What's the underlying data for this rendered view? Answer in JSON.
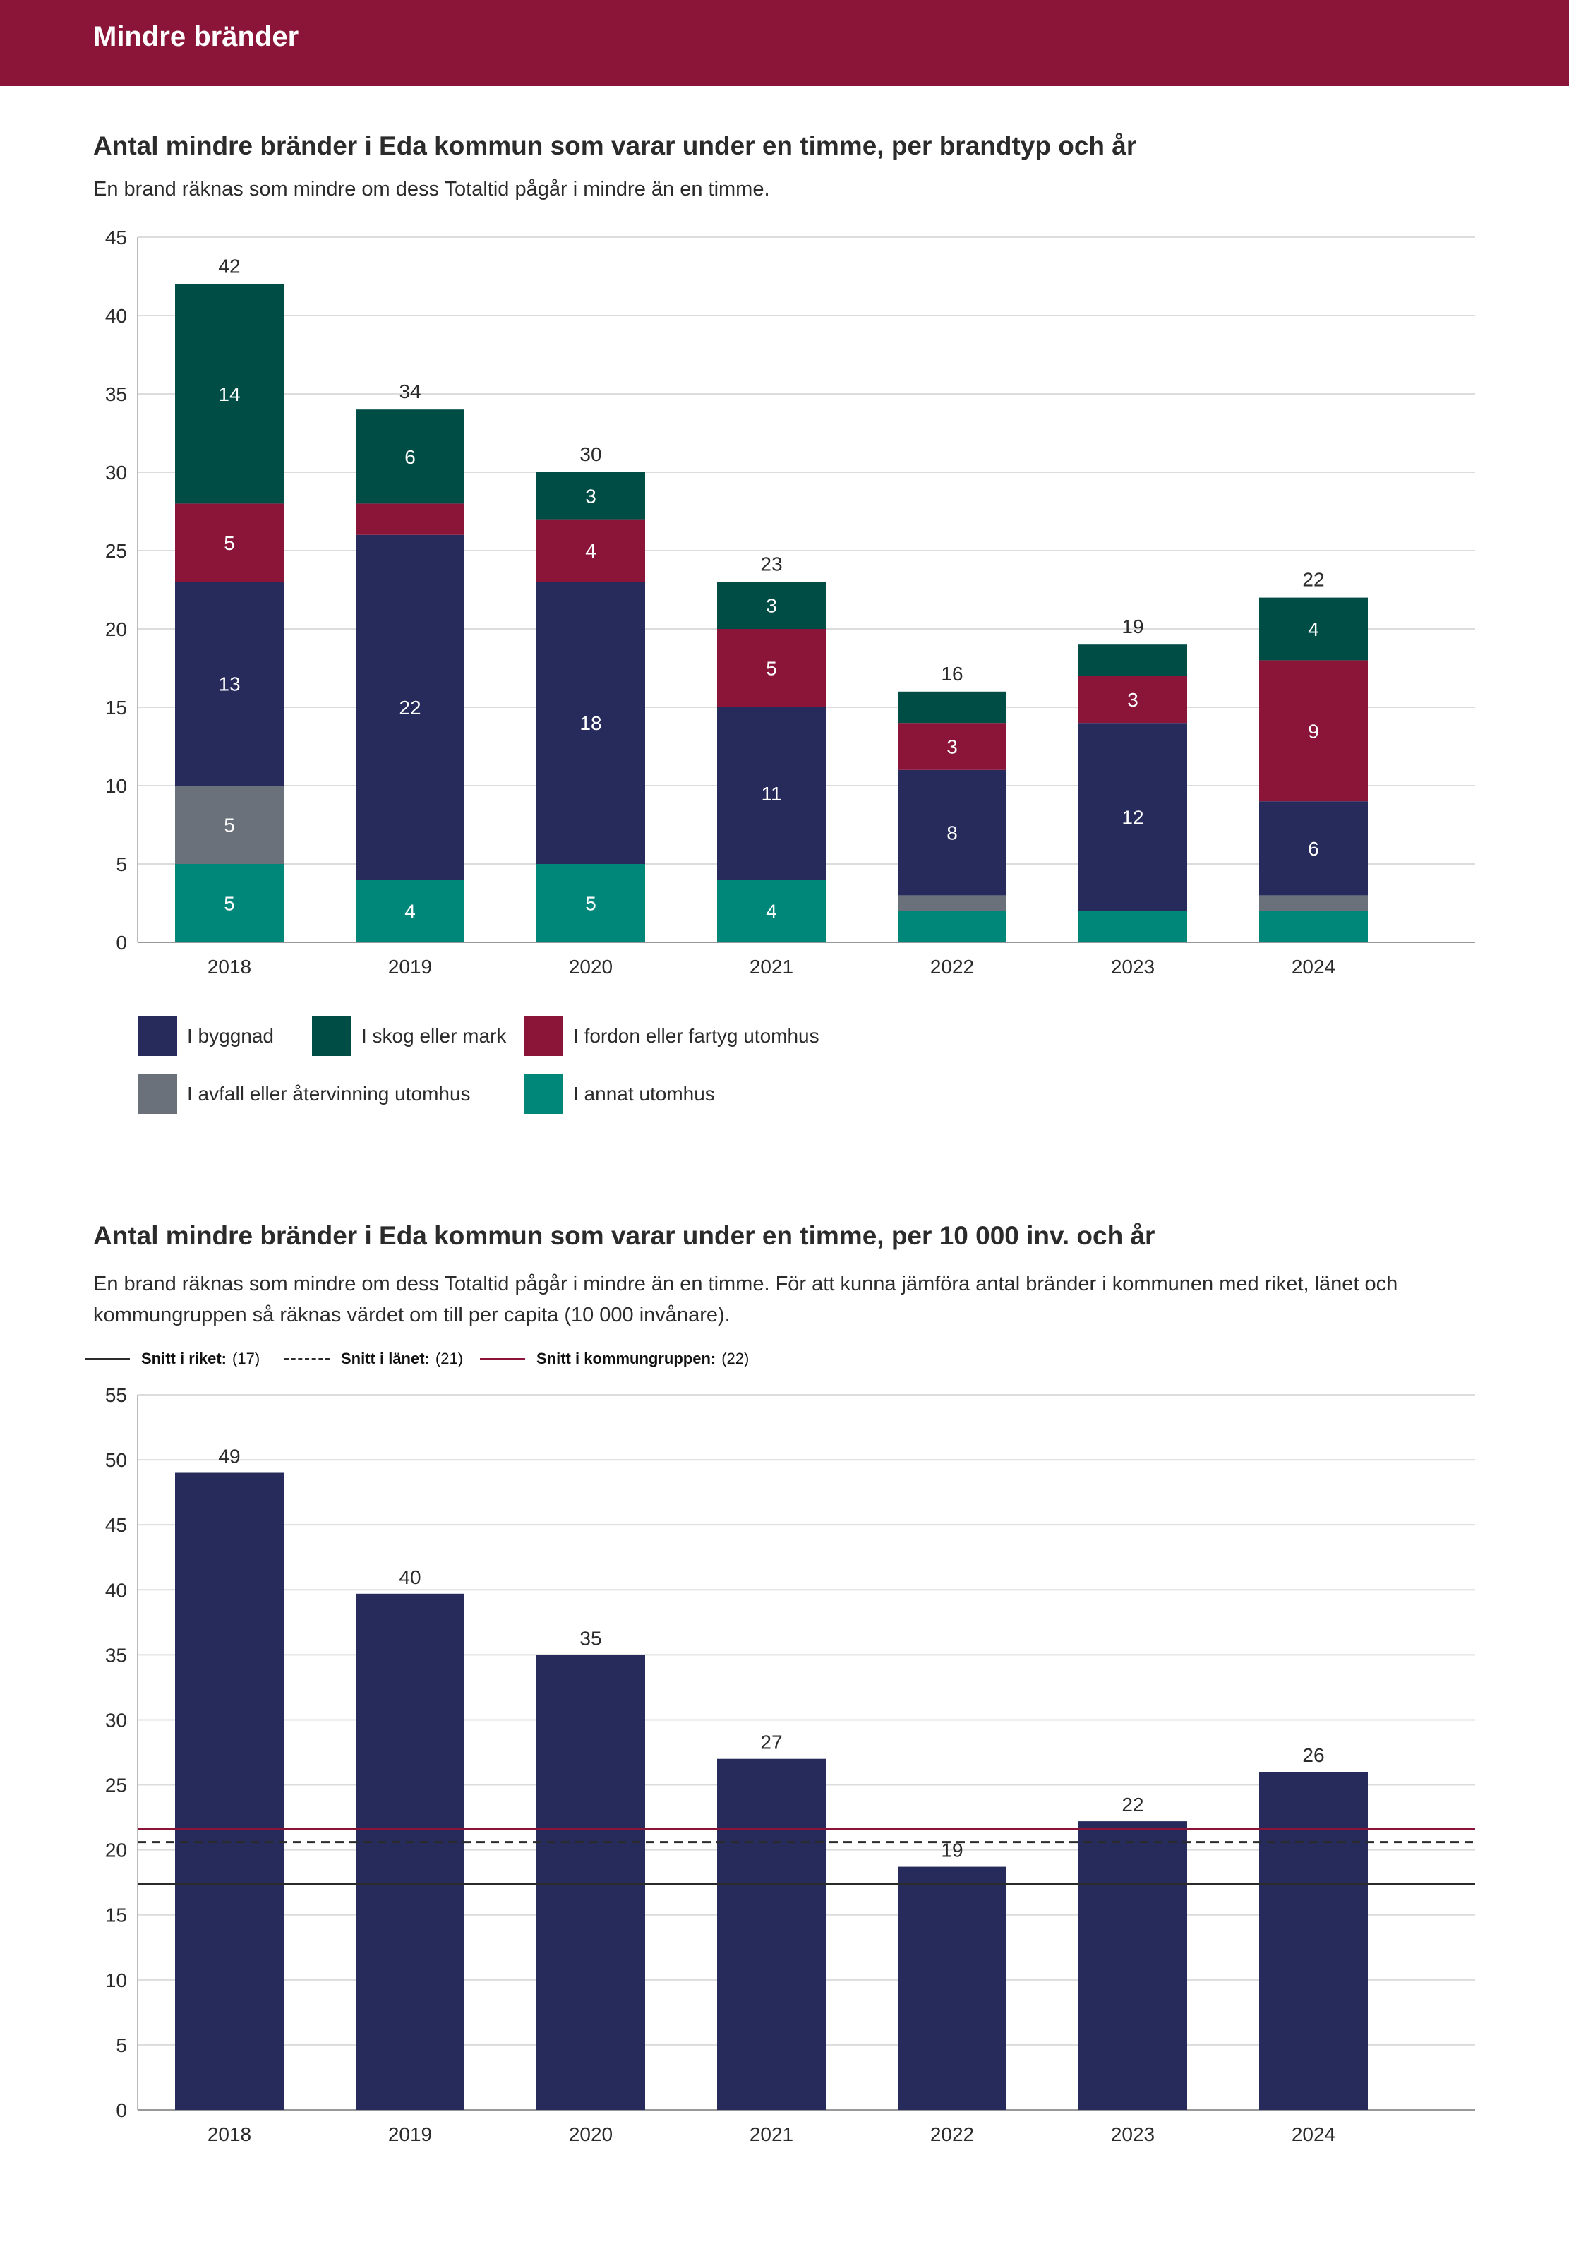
{
  "header": {
    "title": "Mindre bränder"
  },
  "chart1": {
    "title": "Antal mindre bränder i Eda kommun som varar under en timme, per brandtyp och år",
    "subtitle": "En brand räknas som mindre om dess Totaltid pågår i mindre än en timme."
  },
  "chart2": {
    "title": "Antal mindre bränder i Eda kommun som varar under en timme, per 10 000 inv. och år",
    "subtitle": "En brand räknas som mindre om dess Totaltid pågår i mindre än en timme. För att kunna jämföra antal bränder i kommunen med riket, länet och kommungruppen så räknas värdet om till per capita (10 000 invånare).",
    "ref_legend": [
      {
        "label": "Snitt i riket:",
        "value": "(17)",
        "style": "solid",
        "color": "#2b2b2b"
      },
      {
        "label": "Snitt i länet:",
        "value": "(21)",
        "style": "dashed",
        "color": "#2b2b2b"
      },
      {
        "label": "Snitt i kommungruppen:",
        "value": "(22)",
        "style": "solid",
        "color": "#8b1538"
      }
    ]
  },
  "chart_data": [
    {
      "type": "bar",
      "stacked": true,
      "categories": [
        "2018",
        "2019",
        "2020",
        "2021",
        "2022",
        "2023",
        "2024"
      ],
      "series": [
        {
          "name": "I annat utomhus",
          "color": "#00877a",
          "values": [
            5,
            4,
            5,
            4,
            2,
            2,
            2
          ],
          "labels": [
            "5",
            "4",
            "5",
            "4",
            "",
            "",
            ""
          ]
        },
        {
          "name": "I avfall eller återvinning utomhus",
          "color": "#6b717b",
          "values": [
            5,
            0,
            0,
            0,
            1,
            0,
            1
          ],
          "labels": [
            "5",
            "",
            "",
            "",
            "",
            "",
            ""
          ]
        },
        {
          "name": "I byggnad",
          "color": "#262b5c",
          "values": [
            13,
            22,
            18,
            11,
            8,
            12,
            6
          ],
          "labels": [
            "13",
            "22",
            "18",
            "11",
            "8",
            "12",
            "6"
          ]
        },
        {
          "name": "I fordon eller fartyg utomhus",
          "color": "#8b1538",
          "values": [
            5,
            2,
            4,
            5,
            3,
            3,
            9
          ],
          "labels": [
            "5",
            "",
            "4",
            "5",
            "3",
            "3",
            "9"
          ]
        },
        {
          "name": "I skog eller mark",
          "color": "#004d45",
          "values": [
            14,
            6,
            3,
            3,
            2,
            2,
            4
          ],
          "labels": [
            "14",
            "6",
            "3",
            "3",
            "",
            "",
            "4"
          ]
        }
      ],
      "totals": [
        "42",
        "34",
        "30",
        "23",
        "16",
        "19",
        "22"
      ],
      "ylim": [
        0,
        45
      ],
      "yticks": [
        "0",
        "5",
        "10",
        "15",
        "20",
        "25",
        "30",
        "35",
        "40",
        "45"
      ],
      "legend_order": [
        "I byggnad",
        "I skog eller mark",
        "I fordon eller fartyg utomhus",
        "I avfall eller återvinning utomhus",
        "I annat utomhus"
      ],
      "grid": true,
      "legend_position": "bottom"
    },
    {
      "type": "bar",
      "categories": [
        "2018",
        "2019",
        "2020",
        "2021",
        "2022",
        "2023",
        "2024"
      ],
      "series": [
        {
          "color": "#262b5c",
          "values": [
            49,
            39.7,
            35,
            27,
            18.7,
            22.2,
            26
          ]
        }
      ],
      "value_labels": [
        "49",
        "40",
        "35",
        "27",
        "19",
        "22",
        "26"
      ],
      "ylim": [
        0,
        55
      ],
      "yticks": [
        "0",
        "5",
        "10",
        "15",
        "20",
        "25",
        "30",
        "35",
        "40",
        "45",
        "50",
        "55"
      ],
      "reference_lines": [
        {
          "value": 17.4,
          "style": "solid",
          "color": "#2b2b2b"
        },
        {
          "value": 20.6,
          "style": "dashed",
          "color": "#2b2b2b"
        },
        {
          "value": 21.6,
          "style": "solid",
          "color": "#8b1538"
        }
      ],
      "grid": true
    }
  ]
}
